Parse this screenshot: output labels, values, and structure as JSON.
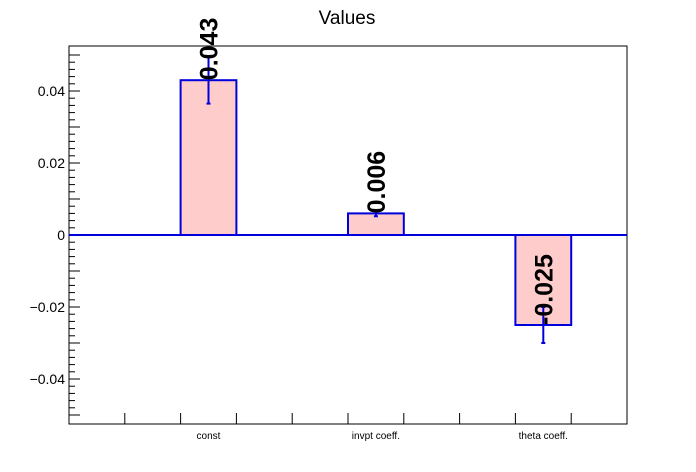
{
  "chart_data": {
    "type": "bar",
    "title": "Values",
    "xlabel": "",
    "ylabel": "",
    "categories": [
      "const",
      "invpt coeff.",
      "theta coeff."
    ],
    "values": [
      0.043,
      0.006,
      -0.025
    ],
    "errors": [
      0.0065,
      0.0008,
      0.005
    ],
    "data_labels": [
      "0.043",
      "0.006",
      "-0.025"
    ],
    "ylim": [
      -0.0525,
      0.0525
    ],
    "yticks": [
      -0.04,
      -0.02,
      0,
      0.02,
      0.04
    ],
    "ytick_labels": [
      "−0.04",
      "−0.02",
      "0",
      "0.02",
      "0.04"
    ],
    "grid": false,
    "colors": {
      "bar_fill": "#ffcccc",
      "bar_edge": "#0000dd",
      "zero_line": "#0000dd",
      "axis": "#000000"
    }
  }
}
